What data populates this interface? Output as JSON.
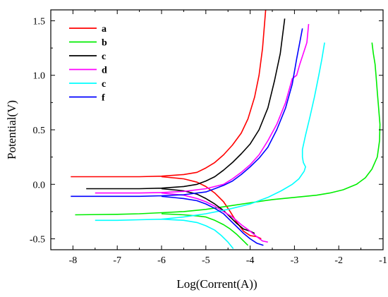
{
  "chart_data": {
    "type": "line",
    "title": "",
    "xlabel": "Log(Corrent(A))",
    "ylabel": "Potential(V)",
    "xlim": [
      -8.5,
      -1
    ],
    "ylim": [
      -0.6,
      1.6
    ],
    "x_ticks": [
      -8,
      -7,
      -6,
      -5,
      -4,
      -3,
      -2,
      -1
    ],
    "x_tick_labels": [
      "-8",
      "-7",
      "-6",
      "-5",
      "-4",
      "-3",
      "-2",
      "-1"
    ],
    "y_ticks": [
      -0.5,
      0.0,
      0.5,
      1.0,
      1.5
    ],
    "y_tick_labels": [
      "-0.5",
      "0.0",
      "0.5",
      "1.0",
      "1.5"
    ],
    "grid": false,
    "legend_position": "top-left",
    "series": [
      {
        "name": "a",
        "color": "#ff0000",
        "points": [
          [
            -8.05,
            0.07
          ],
          [
            -7,
            0.07
          ],
          [
            -6.5,
            0.07
          ],
          [
            -6,
            0.075
          ],
          [
            -5.5,
            0.09
          ],
          [
            -5.2,
            0.11
          ],
          [
            -5.0,
            0.15
          ],
          [
            -4.8,
            0.2
          ],
          [
            -4.6,
            0.27
          ],
          [
            -4.4,
            0.36
          ],
          [
            -4.2,
            0.47
          ],
          [
            -4.05,
            0.6
          ],
          [
            -3.9,
            0.8
          ],
          [
            -3.8,
            1.0
          ],
          [
            -3.72,
            1.25
          ],
          [
            -3.65,
            1.6
          ],
          null,
          [
            -6.0,
            0.07
          ],
          [
            -5.5,
            0.05
          ],
          [
            -5.2,
            0.02
          ],
          [
            -5.0,
            -0.02
          ],
          [
            -4.8,
            -0.08
          ],
          [
            -4.6,
            -0.16
          ],
          [
            -4.45,
            -0.25
          ],
          [
            -4.3,
            -0.35
          ],
          [
            -4.15,
            -0.43
          ],
          [
            -4.0,
            -0.47
          ],
          [
            -3.85,
            -0.48
          ],
          [
            -3.75,
            -0.5
          ]
        ]
      },
      {
        "name": "b",
        "color": "#00ee00",
        "points": [
          [
            -7.95,
            -0.28
          ],
          [
            -7,
            -0.275
          ],
          [
            -6.5,
            -0.27
          ],
          [
            -6.0,
            -0.26
          ],
          [
            -5.5,
            -0.25
          ],
          [
            -5.0,
            -0.23
          ],
          [
            -4.5,
            -0.2
          ],
          [
            -4.0,
            -0.17
          ],
          [
            -3.5,
            -0.14
          ],
          [
            -3.0,
            -0.12
          ],
          [
            -2.5,
            -0.1
          ],
          [
            -2.2,
            -0.08
          ],
          [
            -1.9,
            -0.05
          ],
          [
            -1.6,
            0.0
          ],
          [
            -1.4,
            0.06
          ],
          [
            -1.25,
            0.14
          ],
          [
            -1.13,
            0.25
          ],
          [
            -1.08,
            0.4
          ],
          [
            -1.07,
            0.55
          ],
          [
            -1.1,
            0.7
          ],
          [
            -1.13,
            0.85
          ],
          [
            -1.16,
            1.0
          ],
          [
            -1.18,
            1.1
          ],
          [
            -1.22,
            1.2
          ],
          [
            -1.25,
            1.3
          ],
          null,
          [
            -6.0,
            -0.27
          ],
          [
            -5.5,
            -0.28
          ],
          [
            -5.2,
            -0.29
          ],
          [
            -5.0,
            -0.3
          ],
          [
            -4.8,
            -0.33
          ],
          [
            -4.6,
            -0.37
          ],
          [
            -4.45,
            -0.41
          ],
          [
            -4.3,
            -0.46
          ],
          [
            -4.15,
            -0.52
          ],
          [
            -4.05,
            -0.56
          ]
        ]
      },
      {
        "name": "c",
        "color": "#000000",
        "points": [
          [
            -7.7,
            -0.04
          ],
          [
            -7,
            -0.04
          ],
          [
            -6.5,
            -0.04
          ],
          [
            -6.0,
            -0.035
          ],
          [
            -5.5,
            -0.02
          ],
          [
            -5.2,
            0.0
          ],
          [
            -5.0,
            0.03
          ],
          [
            -4.8,
            0.07
          ],
          [
            -4.6,
            0.13
          ],
          [
            -4.4,
            0.2
          ],
          [
            -4.2,
            0.28
          ],
          [
            -4.0,
            0.37
          ],
          [
            -3.8,
            0.5
          ],
          [
            -3.6,
            0.7
          ],
          [
            -3.45,
            0.95
          ],
          [
            -3.32,
            1.2
          ],
          [
            -3.22,
            1.52
          ],
          null,
          [
            -6.0,
            -0.04
          ],
          [
            -5.5,
            -0.06
          ],
          [
            -5.2,
            -0.09
          ],
          [
            -5.0,
            -0.13
          ],
          [
            -4.8,
            -0.18
          ],
          [
            -4.6,
            -0.24
          ],
          [
            -4.45,
            -0.3
          ],
          [
            -4.3,
            -0.36
          ],
          [
            -4.15,
            -0.41
          ],
          [
            -4.0,
            -0.43
          ],
          [
            -3.9,
            -0.45
          ]
        ]
      },
      {
        "name": "d",
        "color": "#ff00ff",
        "points": [
          [
            -7.5,
            -0.08
          ],
          [
            -7,
            -0.08
          ],
          [
            -6.5,
            -0.08
          ],
          [
            -6.0,
            -0.075
          ],
          [
            -5.5,
            -0.065
          ],
          [
            -5.0,
            -0.04
          ],
          [
            -4.8,
            -0.02
          ],
          [
            -4.6,
            0.0
          ],
          [
            -4.4,
            0.05
          ],
          [
            -4.2,
            0.11
          ],
          [
            -4.0,
            0.18
          ],
          [
            -3.8,
            0.27
          ],
          [
            -3.6,
            0.4
          ],
          [
            -3.4,
            0.55
          ],
          [
            -3.2,
            0.75
          ],
          [
            -3.05,
            0.97
          ],
          [
            -2.95,
            1.0
          ],
          [
            -2.88,
            1.1
          ],
          [
            -2.8,
            1.2
          ],
          [
            -2.72,
            1.3
          ],
          [
            -2.68,
            1.47
          ],
          null,
          [
            -6.0,
            -0.08
          ],
          [
            -5.5,
            -0.1
          ],
          [
            -5.2,
            -0.13
          ],
          [
            -5.0,
            -0.16
          ],
          [
            -4.8,
            -0.2
          ],
          [
            -4.6,
            -0.25
          ],
          [
            -4.4,
            -0.3
          ],
          [
            -4.2,
            -0.37
          ],
          [
            -4.0,
            -0.43
          ],
          [
            -3.85,
            -0.48
          ],
          [
            -3.72,
            -0.52
          ],
          [
            -3.6,
            -0.53
          ]
        ]
      },
      {
        "name": "c",
        "color": "#00ffff",
        "points": [
          [
            -7.5,
            -0.33
          ],
          [
            -7,
            -0.33
          ],
          [
            -6.5,
            -0.325
          ],
          [
            -6.0,
            -0.32
          ],
          [
            -5.5,
            -0.3
          ],
          [
            -5.0,
            -0.27
          ],
          [
            -4.5,
            -0.23
          ],
          [
            -4.0,
            -0.18
          ],
          [
            -3.6,
            -0.12
          ],
          [
            -3.3,
            -0.06
          ],
          [
            -3.05,
            0.0
          ],
          [
            -2.9,
            0.05
          ],
          [
            -2.78,
            0.12
          ],
          [
            -2.75,
            0.16
          ],
          [
            -2.8,
            0.2
          ],
          [
            -2.82,
            0.25
          ],
          [
            -2.82,
            0.32
          ],
          [
            -2.75,
            0.45
          ],
          [
            -2.65,
            0.62
          ],
          [
            -2.55,
            0.8
          ],
          [
            -2.45,
            1.0
          ],
          [
            -2.38,
            1.15
          ],
          [
            -2.32,
            1.3
          ],
          null,
          [
            -6.0,
            -0.32
          ],
          [
            -5.5,
            -0.33
          ],
          [
            -5.2,
            -0.35
          ],
          [
            -5.0,
            -0.38
          ],
          [
            -4.8,
            -0.42
          ],
          [
            -4.65,
            -0.47
          ],
          [
            -4.5,
            -0.53
          ],
          [
            -4.38,
            -0.59
          ]
        ]
      },
      {
        "name": "f",
        "color": "#0000ff",
        "points": [
          [
            -8.05,
            -0.11
          ],
          [
            -7,
            -0.11
          ],
          [
            -6.5,
            -0.11
          ],
          [
            -6.0,
            -0.105
          ],
          [
            -5.5,
            -0.095
          ],
          [
            -5.0,
            -0.07
          ],
          [
            -4.8,
            -0.04
          ],
          [
            -4.6,
            -0.01
          ],
          [
            -4.4,
            0.03
          ],
          [
            -4.2,
            0.09
          ],
          [
            -4.0,
            0.16
          ],
          [
            -3.8,
            0.24
          ],
          [
            -3.6,
            0.34
          ],
          [
            -3.4,
            0.5
          ],
          [
            -3.2,
            0.7
          ],
          [
            -3.05,
            0.92
          ],
          [
            -2.95,
            1.15
          ],
          [
            -2.88,
            1.3
          ],
          [
            -2.82,
            1.43
          ],
          null,
          [
            -6.0,
            -0.11
          ],
          [
            -5.5,
            -0.13
          ],
          [
            -5.2,
            -0.15
          ],
          [
            -5.0,
            -0.18
          ],
          [
            -4.8,
            -0.22
          ],
          [
            -4.6,
            -0.27
          ],
          [
            -4.45,
            -0.33
          ],
          [
            -4.3,
            -0.39
          ],
          [
            -4.15,
            -0.45
          ],
          [
            -4.0,
            -0.5
          ],
          [
            -3.85,
            -0.54
          ],
          [
            -3.7,
            -0.56
          ]
        ]
      }
    ]
  }
}
